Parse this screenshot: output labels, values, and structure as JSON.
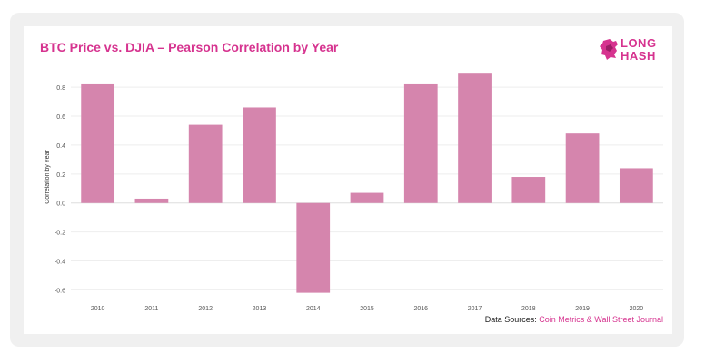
{
  "title": "BTC Price vs. DJIA – Pearson Correlation by Year",
  "logo": {
    "line1": "LONG",
    "line2": "HASH"
  },
  "source": {
    "prefix": "Data Sources:",
    "text": "Coin Metrics & Wall Street Journal"
  },
  "colors": {
    "bar": "#d585ad",
    "title": "#d6338f",
    "grid": "#eeeeee",
    "zero": "#dddddd"
  },
  "chart_data": {
    "type": "bar",
    "title": "BTC Price vs. DJIA – Pearson Correlation by Year",
    "xlabel": "",
    "ylabel": "Correlation by Year",
    "categories": [
      "2010",
      "2011",
      "2012",
      "2013",
      "2014",
      "2015",
      "2016",
      "2017",
      "2018",
      "2019",
      "2020"
    ],
    "values": [
      0.82,
      0.03,
      0.54,
      0.66,
      -0.62,
      0.07,
      0.82,
      0.9,
      0.18,
      0.48,
      0.24
    ],
    "yticks": [
      "0.8",
      "0.6",
      "0.4",
      "0.2",
      "0.0",
      "-0.2",
      "-0.4",
      "-0.6"
    ],
    "ylim": [
      -0.66,
      0.92
    ],
    "grid": true,
    "legend": "none"
  }
}
